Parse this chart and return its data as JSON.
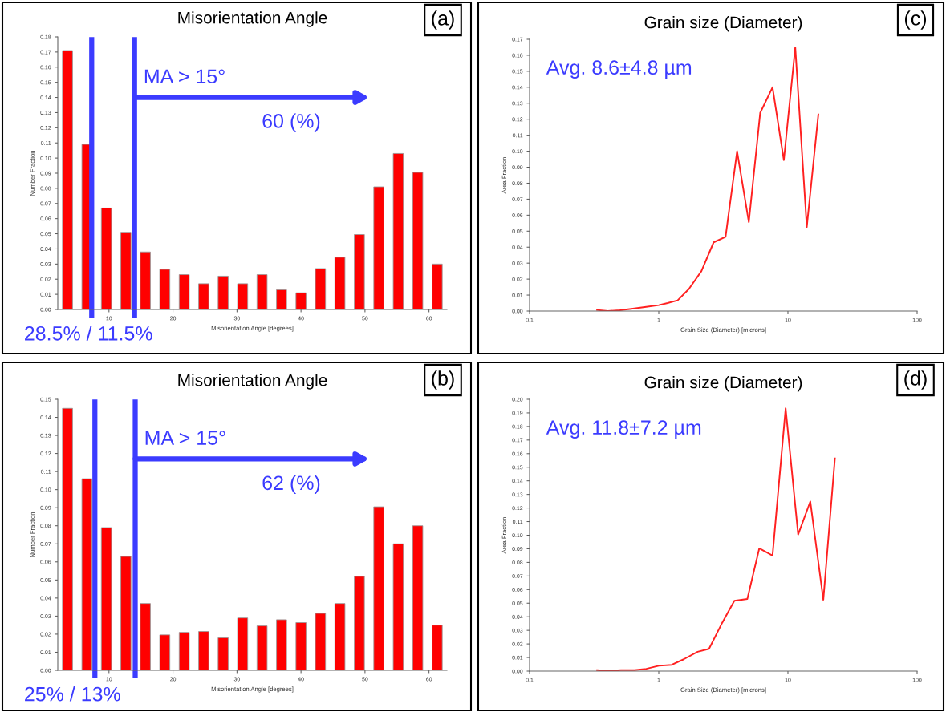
{
  "chart_data": [
    {
      "type": "histogram",
      "title": "Misorientation Angle",
      "xlabel": "Misorientation Angle [degrees]",
      "ylabel": "Number Fraction",
      "color": "#ff0000",
      "bins": [
        2,
        5.04,
        8.08,
        11.12,
        14.16,
        17.2,
        20.24,
        23.28,
        26.32,
        29.36,
        32.4,
        35.44,
        38.48,
        41.52,
        44.56,
        47.6,
        50.64,
        53.68,
        56.72,
        59.76,
        62.8
      ],
      "values": [
        0.171,
        0.109,
        0.067,
        0.051,
        0.038,
        0.0265,
        0.023,
        0.017,
        0.022,
        0.017,
        0.023,
        0.013,
        0.011,
        0.027,
        0.0345,
        0.0495,
        0.081,
        0.103,
        0.0905,
        0.03
      ],
      "xlim": [
        2,
        62.8
      ],
      "xticks": [
        10,
        20,
        30,
        40,
        50,
        60
      ],
      "ylim": [
        0,
        0.18
      ],
      "yticks": [
        {
          "value": 0,
          "label": "0.00"
        },
        {
          "value": 0.01,
          "label": "0.01"
        },
        {
          "value": 0.02,
          "label": "0.02"
        },
        {
          "value": 0.03,
          "label": "0.03"
        },
        {
          "value": 0.04,
          "label": "0.04"
        },
        {
          "value": 0.05,
          "label": "0.05"
        },
        {
          "value": 0.06,
          "label": "0.06"
        },
        {
          "value": 0.07,
          "label": "0.07"
        },
        {
          "value": 0.08,
          "label": "0.08"
        },
        {
          "value": 0.09,
          "label": "0.09"
        },
        {
          "value": 0.1,
          "label": "0.10"
        },
        {
          "value": 0.11,
          "label": "0.11"
        },
        {
          "value": 0.12,
          "label": "0.12"
        },
        {
          "value": 0.13,
          "label": "0.13"
        },
        {
          "value": 0.14,
          "label": "0.14"
        },
        {
          "value": 0.15,
          "label": "0.15"
        },
        {
          "value": 0.16,
          "label": "0.16"
        },
        {
          "value": 0.17,
          "label": "0.17"
        },
        {
          "value": 0.18,
          "label": "0.18"
        }
      ],
      "ref_lines": [
        {
          "axis": "x",
          "value": 7.3,
          "color": "#3b3bff"
        },
        {
          "axis": "x",
          "value": 14,
          "color": "#3b3bff"
        }
      ],
      "annotations": [
        "(a)",
        {
          "text": "MA > 15°",
          "x": 14,
          "y": 0.14
        },
        "60 (%)",
        "28.5% / 11.5%"
      ]
    },
    {
      "type": "line",
      "title": "Grain size (Diameter)",
      "xlabel": "Grain Size (Diameter) [microns]",
      "ylabel": "Area Fraction",
      "log": "x",
      "series": [
        {
          "color": "#ff2020",
          "x": [
            0.333,
            0.404,
            0.5,
            0.63,
            0.8,
            1.0,
            1.17,
            1.4,
            1.71,
            2.14,
            2.66,
            3.29,
            4.04,
            4.98,
            6.1,
            7.6,
            9.3,
            11.4,
            14.0,
            17.2
          ],
          "values": [
            0.0007,
            0,
            0.0005,
            0.0015,
            0.0026,
            0.0037,
            0.005,
            0.0067,
            0.0138,
            0.025,
            0.043,
            0.0465,
            0.1,
            0.0556,
            0.124,
            0.14,
            0.0944,
            0.165,
            0.0526,
            0.123
          ]
        }
      ],
      "xlim": [
        0.1,
        100
      ],
      "xticks": [
        0.1,
        1,
        10,
        100
      ],
      "ylim": [
        0,
        0.17
      ],
      "yticks": [
        {
          "value": 0,
          "label": "0.00"
        },
        {
          "value": 0.01,
          "label": "0.01"
        },
        {
          "value": 0.02,
          "label": "0.02"
        },
        {
          "value": 0.03,
          "label": "0.03"
        },
        {
          "value": 0.04,
          "label": "0.04"
        },
        {
          "value": 0.05,
          "label": "0.05"
        },
        {
          "value": 0.06,
          "label": "0.06"
        },
        {
          "value": 0.07,
          "label": "0.07"
        },
        {
          "value": 0.08,
          "label": "0.08"
        },
        {
          "value": 0.09,
          "label": "0.09"
        },
        {
          "value": 0.1,
          "label": "0.10"
        },
        {
          "value": 0.11,
          "label": "0.11"
        },
        {
          "value": 0.12,
          "label": "0.12"
        },
        {
          "value": 0.13,
          "label": "0.13"
        },
        {
          "value": 0.14,
          "label": "0.14"
        },
        {
          "value": 0.15,
          "label": "0.15"
        },
        {
          "value": 0.16,
          "label": "0.16"
        },
        {
          "value": 0.17,
          "label": "0.17"
        }
      ],
      "annotations": [
        "(c)",
        "Avg. 8.6±4.8 µm"
      ]
    },
    {
      "type": "histogram",
      "title": "Misorientation Angle",
      "xlabel": "Misorientation Angle [degrees]",
      "ylabel": "Number Fraction",
      "color": "#ff0000",
      "bins": [
        2,
        5.04,
        8.08,
        11.12,
        14.16,
        17.2,
        20.24,
        23.28,
        26.32,
        29.36,
        32.4,
        35.44,
        38.48,
        41.52,
        44.56,
        47.6,
        50.64,
        53.68,
        56.72,
        59.76,
        62.8
      ],
      "values": [
        0.145,
        0.106,
        0.079,
        0.063,
        0.037,
        0.0196,
        0.021,
        0.0215,
        0.018,
        0.029,
        0.0246,
        0.028,
        0.0264,
        0.0315,
        0.037,
        0.052,
        0.0905,
        0.07,
        0.08,
        0.025
      ],
      "xlim": [
        2,
        62.8
      ],
      "xticks": [
        10,
        20,
        30,
        40,
        50,
        60
      ],
      "ylim": [
        0,
        0.15
      ],
      "yticks": [
        {
          "value": 0,
          "label": "0.00"
        },
        {
          "value": 0.01,
          "label": "0.01"
        },
        {
          "value": 0.02,
          "label": "0.02"
        },
        {
          "value": 0.03,
          "label": "0.03"
        },
        {
          "value": 0.04,
          "label": "0.04"
        },
        {
          "value": 0.05,
          "label": "0.05"
        },
        {
          "value": 0.06,
          "label": "0.06"
        },
        {
          "value": 0.07,
          "label": "0.07"
        },
        {
          "value": 0.08,
          "label": "0.08"
        },
        {
          "value": 0.09,
          "label": "0.09"
        },
        {
          "value": 0.1,
          "label": "0.10"
        },
        {
          "value": 0.11,
          "label": "0.11"
        },
        {
          "value": 0.12,
          "label": "0.12"
        },
        {
          "value": 0.13,
          "label": "0.13"
        },
        {
          "value": 0.14,
          "label": "0.14"
        },
        {
          "value": 0.15,
          "label": "0.15"
        }
      ],
      "ref_lines": [
        {
          "axis": "x",
          "value": 7.8,
          "color": "#3b3bff"
        },
        {
          "axis": "x",
          "value": 14.1,
          "color": "#3b3bff"
        }
      ],
      "annotations": [
        "(b)",
        {
          "text": "MA > 15°",
          "x": 14.1,
          "y": 0.117
        },
        "62 (%)",
        "25% / 13%"
      ]
    },
    {
      "type": "line",
      "title": "Grain size (Diameter)",
      "xlabel": "Grain Size (Diameter) [microns]",
      "ylabel": "Area Fraction",
      "log": "x",
      "series": [
        {
          "color": "#ff2020",
          "x": [
            0.333,
            0.41,
            0.51,
            0.65,
            0.8,
            1.0,
            1.26,
            1.56,
            2.0,
            2.45,
            3.1,
            3.85,
            4.85,
            6.0,
            7.6,
            9.6,
            12.0,
            14.9,
            18.8,
            23.1
          ],
          "values": [
            0.0007,
            0.0002,
            0.0007,
            0.0007,
            0.0017,
            0.0039,
            0.0046,
            0.0087,
            0.0142,
            0.0164,
            0.0356,
            0.0518,
            0.0531,
            0.0903,
            0.085,
            0.1934,
            0.1005,
            0.1248,
            0.0525,
            0.1565
          ]
        }
      ],
      "xlim": [
        0.1,
        100
      ],
      "xticks": [
        0.1,
        1,
        10,
        100
      ],
      "ylim": [
        0,
        0.2
      ],
      "yticks": [
        {
          "value": 0,
          "label": "0.00"
        },
        {
          "value": 0.01,
          "label": "0.01"
        },
        {
          "value": 0.02,
          "label": "0.02"
        },
        {
          "value": 0.03,
          "label": "0.03"
        },
        {
          "value": 0.04,
          "label": "0.04"
        },
        {
          "value": 0.05,
          "label": "0.05"
        },
        {
          "value": 0.06,
          "label": "0.06"
        },
        {
          "value": 0.07,
          "label": "0.07"
        },
        {
          "value": 0.08,
          "label": "0.08"
        },
        {
          "value": 0.09,
          "label": "0.09"
        },
        {
          "value": 0.1,
          "label": "0.10"
        },
        {
          "value": 0.11,
          "label": "0.11"
        },
        {
          "value": 0.12,
          "label": "0.12"
        },
        {
          "value": 0.13,
          "label": "0.13"
        },
        {
          "value": 0.14,
          "label": "0.14"
        },
        {
          "value": 0.15,
          "label": "0.15"
        },
        {
          "value": 0.16,
          "label": "0.16"
        },
        {
          "value": 0.17,
          "label": "0.17"
        },
        {
          "value": 0.18,
          "label": "0.18"
        },
        {
          "value": 0.19,
          "label": "0.19"
        },
        {
          "value": 0.2,
          "label": "0.20"
        }
      ],
      "annotations": [
        "(d)",
        "Avg. 11.8±7.2 µm"
      ]
    }
  ]
}
